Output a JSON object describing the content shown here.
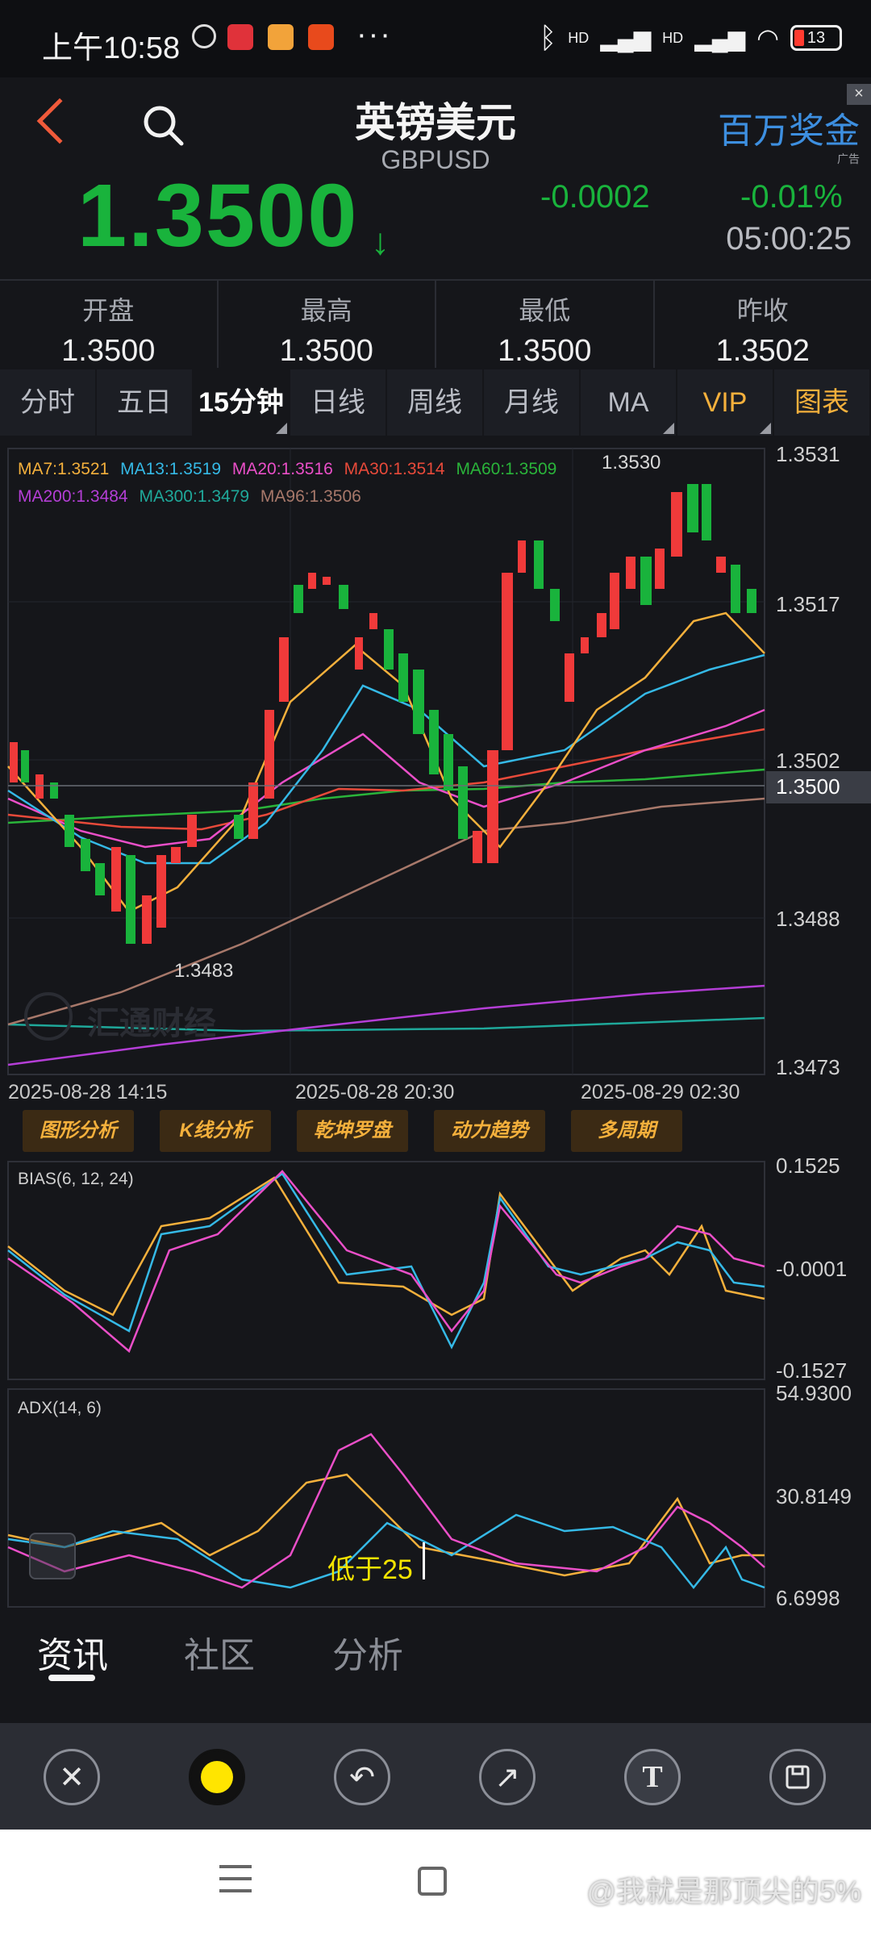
{
  "status_bar": {
    "time": "上午10:58",
    "dots": "···",
    "battery": "13",
    "network": [
      "HD",
      "HD"
    ]
  },
  "header": {
    "title": "英镑美元",
    "code": "GBPUSD",
    "ad_text": "百万奖金",
    "ad_label": "广告",
    "ad_close": "×"
  },
  "quote": {
    "last_price": "1.3500",
    "direction": "↓",
    "change": "-0.0002",
    "change_pct": "-0.01%",
    "time": "05:00:25",
    "color_down": "#19b33c",
    "color_up": "#f03a3a"
  },
  "ohlc": [
    {
      "label": "开盘",
      "value": "1.3500"
    },
    {
      "label": "最高",
      "value": "1.3500"
    },
    {
      "label": "最低",
      "value": "1.3500"
    },
    {
      "label": "昨收",
      "value": "1.3502"
    }
  ],
  "period_tabs": [
    "分时",
    "五日",
    "15分钟",
    "日线",
    "周线",
    "月线",
    "MA",
    "VIP",
    "图表"
  ],
  "active_tab": "15分钟",
  "main_chart": {
    "ma_legend_row1": [
      {
        "text": "MA7:1.3521",
        "color": "#f4b03c"
      },
      {
        "text": "MA13:1.3519",
        "color": "#35b9e6"
      },
      {
        "text": "MA20:1.3516",
        "color": "#ea4fc8"
      },
      {
        "text": "MA30:1.3514",
        "color": "#e84a3a"
      },
      {
        "text": "MA60:1.3509",
        "color": "#2ab43a"
      }
    ],
    "ma_legend_row2": [
      {
        "text": "MA200:1.3484",
        "color": "#b43ed6"
      },
      {
        "text": "MA300:1.3479",
        "color": "#1fa89a"
      },
      {
        "text": "MA96:1.3506",
        "color": "#a7786a"
      }
    ],
    "y_labels": [
      "1.3531",
      "1.3517",
      "1.3502",
      "1.3488",
      "1.3473"
    ],
    "current_price_label": "1.3500",
    "high_marker": "1.3530",
    "low_marker": "1.3483",
    "x_labels": [
      "2025-08-28 14:15",
      "2025-08-28 20:30",
      "2025-08-29 02:30"
    ],
    "watermark": "汇通财经"
  },
  "indicator_buttons": [
    "图形分析",
    "K线分析",
    "乾坤罗盘",
    "动力趋势",
    "多周期"
  ],
  "bias": {
    "title": "BIAS(6, 12, 24)",
    "y_labels": [
      "0.1525",
      "-0.0001",
      "-0.1527"
    ]
  },
  "adx": {
    "title": "ADX(14, 6)",
    "y_labels": [
      "54.9300",
      "30.8149",
      "6.6998"
    ],
    "annotation": "低于25"
  },
  "content_tabs": [
    "资讯",
    "社区",
    "分析"
  ],
  "toolbar": {
    "close": "✕",
    "undo": "↶",
    "arrow": "↗",
    "text": "T"
  },
  "watermark": "@我就是那顶尖的5%"
}
